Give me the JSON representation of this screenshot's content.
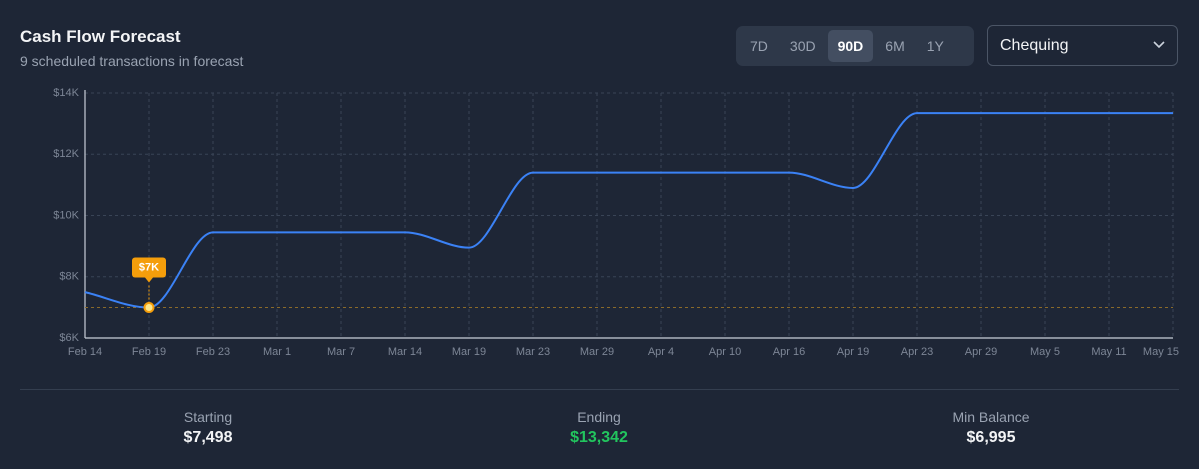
{
  "header": {
    "title": "Cash Flow Forecast",
    "subtitle": "9 scheduled transactions in forecast"
  },
  "controls": {
    "ranges": [
      "7D",
      "30D",
      "90D",
      "6M",
      "1Y"
    ],
    "selected_range": 2,
    "account": "Chequing"
  },
  "chart_data": {
    "type": "line",
    "categories": [
      "Feb 14",
      "Feb 19",
      "Feb 23",
      "Mar 1",
      "Mar 7",
      "Mar 14",
      "Mar 19",
      "Mar 23",
      "Mar 29",
      "Apr 4",
      "Apr 10",
      "Apr 16",
      "Apr 19",
      "Apr 23",
      "Apr 29",
      "May 5",
      "May 11",
      "May 15"
    ],
    "values": [
      7498,
      6995,
      9450,
      9450,
      9450,
      9450,
      8950,
      11400,
      11400,
      11400,
      11400,
      11400,
      10900,
      13342,
      13342,
      13342,
      13342,
      13342
    ],
    "color": "#3b82f6",
    "ylim": [
      6000,
      14000
    ],
    "yticks": [
      {
        "value": 6000,
        "label": "$6K"
      },
      {
        "value": 8000,
        "label": "$8K"
      },
      {
        "value": 10000,
        "label": "$10K"
      },
      {
        "value": 12000,
        "label": "$12K"
      },
      {
        "value": 14000,
        "label": "$14K"
      }
    ],
    "grid": true,
    "min_line": {
      "value": 6995,
      "label": "$7K",
      "color": "#f59e0b"
    }
  },
  "summary": [
    {
      "label": "Starting",
      "value": "$7,498"
    },
    {
      "label": "Ending",
      "value": "$13,342"
    },
    {
      "label": "Min Balance",
      "value": "$6,995"
    }
  ]
}
